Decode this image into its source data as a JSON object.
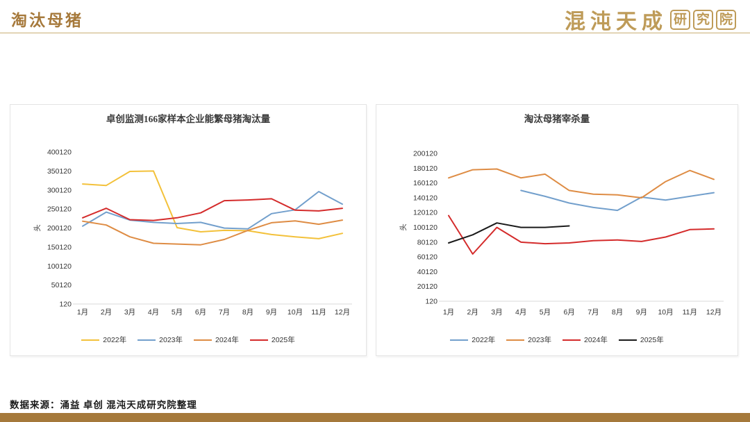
{
  "header": {
    "title": "淘汰母猪",
    "logo_script": "混沌天成",
    "logo_boxed": [
      "研",
      "究",
      "院"
    ]
  },
  "footer": {
    "source": "数据来源：涌益 卓创 混沌天成研究院整理"
  },
  "colors": {
    "brand_gold": "#A5793B",
    "header_rule_gold": "#C9AE74",
    "logo_gold": "#BE9B58",
    "series_yellow": "#F3C13A",
    "series_blue": "#729FCC",
    "series_orange": "#DE8C44",
    "series_red": "#D42B2B",
    "series_black": "#1A1A1A"
  },
  "chart_data": [
    {
      "type": "line",
      "title": "卓创监测166家样本企业能繁母猪淘汰量",
      "ylabel": "头",
      "xlabel": "",
      "grid": false,
      "legend_position": "bottom",
      "categories": [
        "1月",
        "2月",
        "3月",
        "4月",
        "5月",
        "6月",
        "7月",
        "8月",
        "9月",
        "10月",
        "11月",
        "12月"
      ],
      "ylim": [
        120,
        400120
      ],
      "yticks": [
        120,
        50120,
        100120,
        150120,
        200120,
        250120,
        300120,
        350120,
        400120
      ],
      "series": [
        {
          "name": "2022年",
          "color": "#F3C13A",
          "values": [
            316000,
            312000,
            349000,
            350000,
            201000,
            190000,
            194000,
            193000,
            183000,
            177000,
            172000,
            186000
          ]
        },
        {
          "name": "2023年",
          "color": "#729FCC",
          "values": [
            205000,
            242000,
            221000,
            215000,
            212000,
            215000,
            200000,
            198000,
            238000,
            248000,
            296000,
            263000
          ]
        },
        {
          "name": "2024年",
          "color": "#DE8C44",
          "values": [
            218000,
            208000,
            177000,
            160000,
            158000,
            156000,
            170000,
            194000,
            214000,
            219000,
            210000,
            221000
          ]
        },
        {
          "name": "2025年",
          "color": "#D42B2B",
          "values": [
            227000,
            252000,
            222000,
            220000,
            227000,
            240000,
            272000,
            274000,
            277000,
            247000,
            245000,
            252000
          ]
        }
      ]
    },
    {
      "type": "line",
      "title": "淘汰母猪宰杀量",
      "ylabel": "头",
      "xlabel": "",
      "grid": false,
      "legend_position": "bottom",
      "categories": [
        "1月",
        "2月",
        "3月",
        "4月",
        "5月",
        "6月",
        "7月",
        "8月",
        "9月",
        "10月",
        "11月",
        "12月"
      ],
      "ylim": [
        120,
        200120
      ],
      "yticks": [
        120,
        20120,
        40120,
        60120,
        80120,
        100120,
        120120,
        140120,
        160120,
        180120,
        200120
      ],
      "series": [
        {
          "name": "2022年",
          "color": "#729FCC",
          "values": [
            null,
            null,
            null,
            150000,
            142000,
            133000,
            127000,
            123000,
            141000,
            137000,
            142000,
            147000
          ]
        },
        {
          "name": "2023年",
          "color": "#DE8C44",
          "values": [
            167000,
            178000,
            179000,
            167000,
            172000,
            150000,
            145000,
            144000,
            140000,
            162000,
            177000,
            165000
          ]
        },
        {
          "name": "2024年",
          "color": "#D42B2B",
          "values": [
            116000,
            64000,
            100000,
            80000,
            78000,
            79000,
            82000,
            83000,
            81000,
            87000,
            97000,
            98000
          ]
        },
        {
          "name": "2025年",
          "color": "#1A1A1A",
          "values": [
            79000,
            90000,
            106000,
            100000,
            100000,
            102000,
            null,
            null,
            null,
            null,
            null,
            null
          ]
        }
      ]
    }
  ]
}
